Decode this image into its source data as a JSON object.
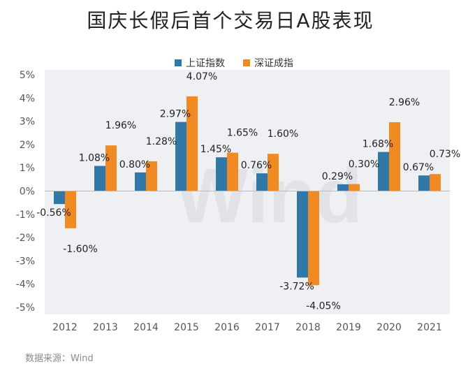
{
  "chart_data": {
    "type": "bar",
    "title": "国庆长假后首个交易日A股表现",
    "categories": [
      "2012",
      "2013",
      "2014",
      "2015",
      "2016",
      "2017",
      "2018",
      "2019",
      "2020",
      "2021"
    ],
    "series": [
      {
        "name": "上证指数",
        "color": "#2f78a8",
        "values": [
          -0.56,
          1.08,
          0.8,
          2.97,
          1.45,
          0.76,
          -3.72,
          0.29,
          1.68,
          0.67
        ],
        "labels": [
          "-0.56%",
          "1.08%",
          "0.80%",
          "2.97%",
          "1.45%",
          "0.76%",
          "-3.72%",
          "0.29%",
          "1.68%",
          "0.67%"
        ]
      },
      {
        "name": "深证成指",
        "color": "#f18a22",
        "values": [
          -1.6,
          1.96,
          1.28,
          4.07,
          1.65,
          1.6,
          -4.05,
          0.3,
          2.96,
          0.73
        ],
        "labels": [
          "-1.60%",
          "1.96%",
          "1.28%",
          "4.07%",
          "1.65%",
          "1.60%",
          "-4.05%",
          "0.30%",
          "2.96%",
          "0.73%"
        ]
      }
    ],
    "ylim": [
      -5,
      5
    ],
    "yticks": [
      5,
      4,
      3,
      2,
      1,
      0,
      -1,
      -2,
      -3,
      -4,
      -5
    ],
    "ytick_labels": [
      "5%",
      "4%",
      "3%",
      "2%",
      "1%",
      "0%",
      "-1%",
      "-2%",
      "-3%",
      "-4%",
      "-5%"
    ],
    "legend_position": "top-center",
    "grid": false
  },
  "watermark": "Wind",
  "source": "数据来源：Wind"
}
